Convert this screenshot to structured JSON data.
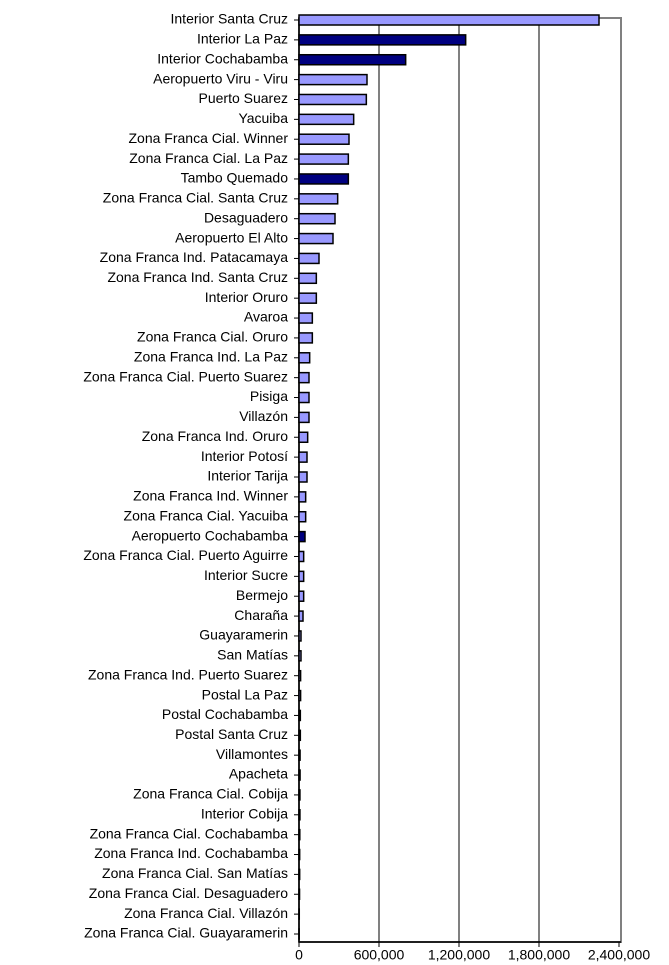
{
  "chart_data": {
    "type": "bar",
    "orientation": "horizontal",
    "categories": [
      "Interior Santa Cruz",
      "Interior La Paz",
      "Interior Cochabamba",
      "Aeropuerto Viru - Viru",
      "Puerto Suarez",
      "Yacuiba",
      "Zona Franca Cial. Winner",
      "Zona Franca Cial. La Paz",
      "Tambo Quemado",
      "Zona Franca Cial. Santa Cruz",
      "Desaguadero",
      "Aeropuerto El Alto",
      "Zona Franca Ind. Patacamaya",
      "Zona Franca Ind. Santa Cruz",
      "Interior Oruro",
      "Avaroa",
      "Zona Franca Cial. Oruro",
      "Zona Franca Ind. La Paz",
      "Zona Franca Cial. Puerto Suarez",
      "Pisiga",
      "Villazón",
      "Zona Franca Ind. Oruro",
      "Interior Potosí",
      "Interior Tarija",
      "Zona Franca Ind. Winner",
      "Zona Franca Cial. Yacuiba",
      "Aeropuerto Cochabamba",
      "Zona Franca Cial. Puerto Aguirre",
      "Interior Sucre",
      "Bermejo",
      "Charaña",
      "Guayaramerin",
      "San Matías",
      "Zona Franca Ind. Puerto Suarez",
      "Postal La Paz",
      "Postal Cochabamba",
      "Postal Santa Cruz",
      "Villamontes",
      "Apacheta",
      "Zona Franca Cial. Cobija",
      "Interior Cobija",
      "Zona Franca Cial. Cochabamba",
      "Zona Franca Ind. Cochabamba",
      "Zona Franca Cial. San Matías",
      "Zona Franca Cial. Desaguadero",
      "Zona Franca Cial. Villazón",
      "Zona Franca Cial. Guayaramerin"
    ],
    "values": [
      2250000,
      1250000,
      800000,
      510000,
      505000,
      410000,
      375000,
      370000,
      370000,
      290000,
      270000,
      255000,
      150000,
      130000,
      130000,
      100000,
      100000,
      80000,
      75000,
      75000,
      75000,
      65000,
      60000,
      60000,
      50000,
      50000,
      45000,
      35000,
      35000,
      35000,
      30000,
      15000,
      15000,
      12000,
      12000,
      10000,
      10000,
      8000,
      8000,
      7000,
      7000,
      6000,
      5000,
      5000,
      4000,
      2000,
      1000
    ],
    "colors": [
      "#9999ff",
      "#000080",
      "#000080",
      "#9999ff",
      "#9999ff",
      "#9999ff",
      "#9999ff",
      "#9999ff",
      "#000080",
      "#9999ff",
      "#9999ff",
      "#9999ff",
      "#9999ff",
      "#9999ff",
      "#9999ff",
      "#9999ff",
      "#9999ff",
      "#9999ff",
      "#9999ff",
      "#9999ff",
      "#9999ff",
      "#9999ff",
      "#9999ff",
      "#9999ff",
      "#9999ff",
      "#9999ff",
      "#000080",
      "#9999ff",
      "#9999ff",
      "#9999ff",
      "#9999ff",
      "#9999ff",
      "#9999ff",
      "#9999ff",
      "#9999ff",
      "#9999ff",
      "#9999ff",
      "#9999ff",
      "#9999ff",
      "#9999ff",
      "#9999ff",
      "#9999ff",
      "#9999ff",
      "#9999ff",
      "#9999ff",
      "#9999ff",
      "#9999ff"
    ],
    "xlim": [
      0,
      2400000
    ],
    "xticks": [
      0,
      {
        "value": 600000,
        "label": "600,000"
      },
      {
        "value": 1200000,
        "label": "1,200,000"
      },
      {
        "value": 1800000,
        "label": "1,800,000"
      },
      {
        "value": 2400000,
        "label": "2,400,000"
      }
    ],
    "grid": true
  }
}
